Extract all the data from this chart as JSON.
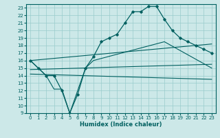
{
  "xlabel": "Humidex (Indice chaleur)",
  "bg_color": "#cce8e8",
  "line_color": "#006060",
  "grid_color": "#99cccc",
  "xlim": [
    -0.5,
    23.5
  ],
  "ylim": [
    9,
    23.5
  ],
  "yticks": [
    9,
    10,
    11,
    12,
    13,
    14,
    15,
    16,
    17,
    18,
    19,
    20,
    21,
    22,
    23
  ],
  "xticks": [
    0,
    1,
    2,
    3,
    4,
    5,
    6,
    7,
    8,
    9,
    10,
    11,
    12,
    13,
    14,
    15,
    16,
    17,
    18,
    19,
    20,
    21,
    22,
    23
  ],
  "main_line": [
    [
      0,
      16.0
    ],
    [
      1,
      15.0
    ],
    [
      2,
      14.0
    ],
    [
      3,
      14.0
    ],
    [
      4,
      12.0
    ],
    [
      5,
      9.0
    ],
    [
      6,
      11.5
    ],
    [
      7,
      15.0
    ],
    [
      8,
      16.5
    ],
    [
      9,
      18.5
    ],
    [
      10,
      19.0
    ],
    [
      11,
      19.5
    ],
    [
      12,
      21.0
    ],
    [
      13,
      22.5
    ],
    [
      14,
      22.5
    ],
    [
      15,
      23.2
    ],
    [
      16,
      23.2
    ],
    [
      17,
      21.5
    ],
    [
      18,
      20.0
    ],
    [
      19,
      19.0
    ],
    [
      20,
      18.5
    ],
    [
      21,
      18.0
    ],
    [
      22,
      17.5
    ],
    [
      23,
      17.0
    ]
  ],
  "line_v": [
    [
      0,
      16.0
    ],
    [
      2,
      14.0
    ],
    [
      3,
      12.2
    ],
    [
      4,
      12.2
    ],
    [
      5,
      9.0
    ],
    [
      7,
      15.0
    ],
    [
      8,
      16.0
    ],
    [
      17,
      18.5
    ],
    [
      23,
      15.0
    ]
  ],
  "line_diag1": [
    [
      0,
      16.0
    ],
    [
      23,
      18.2
    ]
  ],
  "line_diag2": [
    [
      0,
      14.8
    ],
    [
      23,
      15.5
    ]
  ],
  "line_diag3": [
    [
      0,
      14.2
    ],
    [
      23,
      13.5
    ]
  ]
}
